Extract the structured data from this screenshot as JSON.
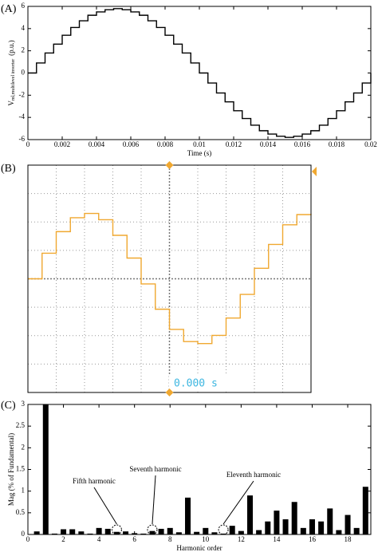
{
  "chart_data": [
    {
      "type": "line",
      "title": "(A)",
      "step": true,
      "color": "#000000",
      "xlabel": "Time (s)",
      "ylabel": "V",
      "ylabel_sub": "ml,multilevel inverter",
      "ylabel_unit": "(p.u.)",
      "x": [
        0,
        0.0005,
        0.001,
        0.0015,
        0.002,
        0.0025,
        0.003,
        0.0035,
        0.004,
        0.0045,
        0.005,
        0.0055,
        0.006,
        0.0065,
        0.007,
        0.0075,
        0.008,
        0.0085,
        0.009,
        0.0095,
        0.01,
        0.0105,
        0.011,
        0.0115,
        0.012,
        0.0125,
        0.013,
        0.0135,
        0.014,
        0.0145,
        0.015,
        0.0155,
        0.016,
        0.0165,
        0.017,
        0.0175,
        0.018,
        0.0185,
        0.019,
        0.0195,
        0.02
      ],
      "values": [
        0,
        0.9,
        1.8,
        2.6,
        3.4,
        4.1,
        4.7,
        5.2,
        5.5,
        5.7,
        5.8,
        5.7,
        5.5,
        5.2,
        4.7,
        4.1,
        3.4,
        2.6,
        1.8,
        0.9,
        0,
        -0.9,
        -1.8,
        -2.6,
        -3.4,
        -4.1,
        -4.7,
        -5.2,
        -5.5,
        -5.7,
        -5.8,
        -5.7,
        -5.5,
        -5.2,
        -4.7,
        -4.1,
        -3.4,
        -2.6,
        -1.8,
        -0.9,
        0
      ],
      "xlim": [
        0,
        0.02
      ],
      "xticks": [
        0,
        0.002,
        0.004,
        0.006,
        0.008,
        0.01,
        0.012,
        0.014,
        0.016,
        0.018,
        0.02
      ],
      "ylim": [
        -6,
        6
      ],
      "yticks": [
        -6,
        -4,
        -2,
        0,
        2,
        4,
        6
      ]
    },
    {
      "type": "line",
      "title": "(B)",
      "step": true,
      "color": "#f0a830",
      "tick_labels": false,
      "grid": true,
      "readout": "0.000 s",
      "readout_color": "#3cb6e0",
      "x": [
        0,
        0.5,
        1,
        1.5,
        2,
        2.5,
        3,
        3.5,
        4,
        4.5,
        5,
        5.5,
        6,
        6.5,
        7,
        7.5,
        8,
        8.5,
        9,
        9.5,
        10
      ],
      "values": [
        0,
        0.9,
        1.66,
        2.15,
        2.3,
        2.08,
        1.53,
        0.73,
        -0.18,
        -1.07,
        -1.78,
        -2.21,
        -2.28,
        -1.99,
        -1.38,
        -0.55,
        0.37,
        1.21,
        1.9,
        2.26,
        2.25
      ],
      "xlim": [
        0,
        10
      ],
      "xticks": [
        0,
        1,
        2,
        3,
        4,
        5,
        6,
        7,
        8,
        9,
        10
      ],
      "ylim": [
        -4,
        4
      ],
      "yticks": [
        -4,
        -3,
        -2,
        -1,
        0,
        1,
        2,
        3,
        4
      ]
    },
    {
      "type": "bar",
      "title": "(C)",
      "color": "#000000",
      "xlabel": "Harmonic order",
      "ylabel": "Mag (% of Fundamental)",
      "x": [
        0.5,
        1,
        1.5,
        2,
        2.5,
        3,
        3.5,
        4,
        4.5,
        5,
        5.5,
        6,
        6.5,
        7,
        7.5,
        8,
        8.5,
        9,
        9.5,
        10,
        10.5,
        11,
        11.5,
        12,
        12.5,
        13,
        13.5,
        14,
        14.5,
        15,
        15.5,
        16,
        16.5,
        17,
        17.5,
        18,
        18.5,
        19
      ],
      "values": [
        0.07,
        3,
        0.02,
        0.12,
        0.12,
        0.07,
        0.02,
        0.15,
        0.13,
        0.06,
        0.07,
        0.03,
        0.02,
        0.08,
        0.13,
        0.15,
        0.05,
        0.85,
        0.06,
        0.15,
        0.05,
        0.02,
        0.2,
        0.08,
        0.9,
        0.1,
        0.3,
        0.55,
        0.35,
        0.75,
        0.15,
        0.35,
        0.3,
        0.6,
        0.1,
        0.45,
        0.15,
        1.1
      ],
      "xlim": [
        0,
        19.3
      ],
      "xticks": [
        0,
        2,
        4,
        6,
        8,
        10,
        12,
        14,
        16,
        18
      ],
      "ylim": [
        0,
        3
      ],
      "yticks": [
        0,
        0.5,
        1,
        1.5,
        2,
        2.5,
        3
      ],
      "annotations": [
        {
          "text": "Fifth harmonic",
          "x": 5
        },
        {
          "text": "Seventh harmonic",
          "x": 7
        },
        {
          "text": "Eleventh harmonic",
          "x": 11
        }
      ]
    }
  ]
}
